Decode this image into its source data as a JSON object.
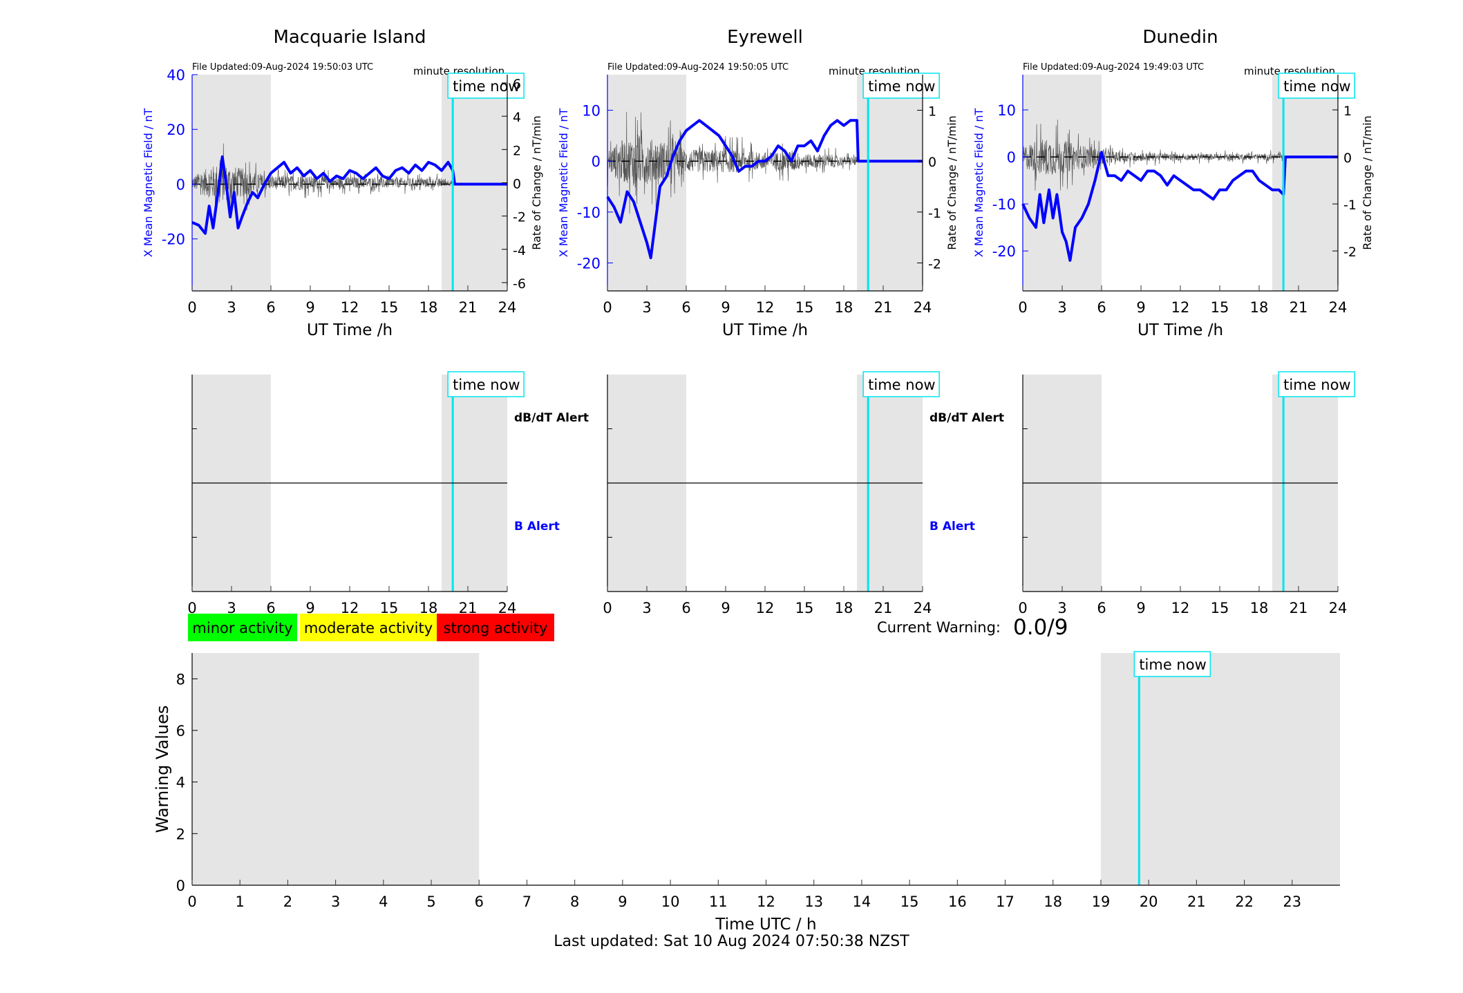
{
  "panel_headings": {
    "resolution_note": "minute resolution",
    "time_now_label": "time now",
    "x_axis_label": "UT Time /h",
    "left_axis_label": "X Mean Magnetic Field / nT",
    "right_axis_label": "Rate of Change / nT/min",
    "dbdt_alert_label": "dB/dT Alert",
    "b_alert_label": "B Alert"
  },
  "legend": {
    "minor": "minor activity",
    "moderate": "moderate activity",
    "strong": "strong activity"
  },
  "current_warning": {
    "label": "Current Warning:",
    "value": "0.0/9"
  },
  "footer": {
    "last_updated": "Last updated: Sat 10 Aug 2024 07:50:38 NZST"
  },
  "colors": {
    "field_line": "#0000ff",
    "rate_line": "#555555",
    "time_now": "#00e5ee",
    "night_shade": "#e5e5e5",
    "minor": "#00ff00",
    "moderate": "#ffff00",
    "strong": "#ff0000",
    "b_alert_text": "#0000ff"
  },
  "chart_data": [
    {
      "type": "line",
      "title": "Macquarie Island",
      "subtitle": "File Updated:09-Aug-2024 19:50:03 UTC",
      "xlabel": "UT Time /h",
      "ylabel": "X Mean Magnetic Field / nT",
      "ylabel_right": "Rate of Change / nT/min",
      "xlim": [
        0,
        24
      ],
      "ylim": [
        -39,
        40
      ],
      "ylim_right": [
        -6.5,
        6.5
      ],
      "xticks": [
        0,
        3,
        6,
        9,
        12,
        15,
        18,
        21,
        24
      ],
      "yticks": [
        -20,
        0,
        20,
        40
      ],
      "yticks_right": [
        -6,
        -4,
        -2,
        0,
        2,
        4,
        6
      ],
      "shaded_x": [
        [
          0,
          6
        ],
        [
          19,
          24
        ]
      ],
      "time_now": 19.85,
      "series": [
        {
          "name": "X Mean Magnetic Field",
          "axis": "left",
          "x": [
            0,
            0.5,
            1,
            1.3,
            1.6,
            2,
            2.3,
            2.6,
            2.9,
            3.2,
            3.5,
            3.8,
            4.2,
            4.6,
            5,
            5.5,
            6,
            6.5,
            7,
            7.5,
            8,
            8.5,
            9,
            9.5,
            10,
            10.5,
            11,
            11.5,
            12,
            12.5,
            13,
            13.5,
            14,
            14.5,
            15,
            15.5,
            16,
            16.5,
            17,
            17.5,
            18,
            18.5,
            19,
            19.5,
            19.85,
            20,
            24
          ],
          "y": [
            -14,
            -15,
            -18,
            -8,
            -16,
            -2,
            10,
            0,
            -12,
            -3,
            -16,
            -12,
            -7,
            -3,
            -5,
            0,
            4,
            6,
            8,
            4,
            6,
            3,
            5,
            2,
            4,
            1,
            3,
            2,
            5,
            4,
            2,
            4,
            6,
            3,
            2,
            5,
            6,
            4,
            7,
            5,
            8,
            7,
            5,
            8,
            5,
            0,
            0
          ]
        },
        {
          "name": "Rate of Change",
          "axis": "right",
          "noisy": true,
          "x": [
            0,
            1,
            2,
            3,
            4,
            5,
            6,
            7,
            8,
            9,
            10,
            11,
            12,
            13,
            14,
            15,
            16,
            17,
            18,
            19,
            19.85
          ],
          "y": [
            0,
            0,
            0,
            0,
            0,
            0,
            0,
            0,
            0,
            0,
            0,
            0,
            0,
            0,
            0,
            0,
            0,
            0,
            0,
            0,
            0
          ],
          "amplitude": [
            0.8,
            1.8,
            2.6,
            2.3,
            1.8,
            1.2,
            0.9,
            0.9,
            1.0,
            0.9,
            0.9,
            0.8,
            0.8,
            0.7,
            0.8,
            0.7,
            0.7,
            0.6,
            0.6,
            0.6,
            0.3
          ]
        }
      ]
    },
    {
      "type": "line",
      "title": "Eyrewell",
      "subtitle": "File Updated:09-Aug-2024 19:50:05 UTC",
      "xlabel": "UT Time /h",
      "ylabel": "X Mean Magnetic Field / nT",
      "ylabel_right": "Rate of Change / nT/min",
      "xlim": [
        0,
        24
      ],
      "ylim": [
        -25.5,
        17
      ],
      "ylim_right": [
        -2.55,
        1.7
      ],
      "xticks": [
        0,
        3,
        6,
        9,
        12,
        15,
        18,
        21,
        24
      ],
      "yticks": [
        -20,
        -10,
        0,
        10
      ],
      "yticks_right": [
        -2,
        -1,
        0,
        1
      ],
      "shaded_x": [
        [
          0,
          6
        ],
        [
          19,
          24
        ]
      ],
      "time_now": 19.85,
      "series": [
        {
          "name": "X Mean Magnetic Field",
          "axis": "left",
          "x": [
            0,
            0.5,
            1,
            1.5,
            2,
            2.5,
            3,
            3.3,
            3.6,
            4,
            4.5,
            5,
            5.5,
            6,
            6.5,
            7,
            7.5,
            8,
            8.5,
            9,
            9.5,
            10,
            10.5,
            11,
            11.5,
            12,
            12.5,
            13,
            13.5,
            14,
            14.5,
            15,
            15.5,
            16,
            16.5,
            17,
            17.5,
            18,
            18.5,
            19,
            19.1,
            19.85,
            24
          ],
          "y": [
            -7,
            -9,
            -12,
            -6,
            -8,
            -12,
            -16,
            -19,
            -13,
            -5,
            -3,
            1,
            4,
            6,
            7,
            8,
            7,
            6,
            5,
            3,
            1,
            -2,
            -1,
            -1,
            0,
            0,
            1,
            3,
            2,
            0,
            3,
            3,
            4,
            2,
            5,
            7,
            8,
            7,
            8,
            8,
            0,
            0,
            0
          ]
        },
        {
          "name": "Rate of Change",
          "axis": "right",
          "noisy": true,
          "x": [
            0,
            1,
            2,
            3,
            4,
            5,
            6,
            7,
            8,
            9,
            10,
            11,
            12,
            13,
            14,
            15,
            16,
            17,
            18,
            19
          ],
          "y": [
            0,
            0,
            0,
            0,
            0,
            0,
            0,
            0,
            0,
            0,
            0,
            0,
            0,
            0,
            0,
            0,
            0,
            0,
            0,
            0
          ],
          "amplitude": [
            0.5,
            0.9,
            1.1,
            1.0,
            0.9,
            0.8,
            0.5,
            0.5,
            0.5,
            0.5,
            0.5,
            0.4,
            0.4,
            0.4,
            0.5,
            0.3,
            0.3,
            0.3,
            0.2,
            0.2
          ]
        }
      ]
    },
    {
      "type": "line",
      "title": "Dunedin",
      "subtitle": "File Updated:09-Aug-2024 19:49:03 UTC",
      "xlabel": "UT Time /h",
      "ylabel": "X Mean Magnetic Field / nT",
      "ylabel_right": "Rate of Change / nT/min",
      "xlim": [
        0,
        24
      ],
      "ylim": [
        -28.5,
        17.5
      ],
      "ylim_right": [
        -2.85,
        1.75
      ],
      "xticks": [
        0,
        3,
        6,
        9,
        12,
        15,
        18,
        21,
        24
      ],
      "yticks": [
        -20,
        -10,
        0,
        10
      ],
      "yticks_right": [
        -2,
        -1,
        0,
        1
      ],
      "shaded_x": [
        [
          0,
          6
        ],
        [
          19,
          24
        ]
      ],
      "time_now": 19.85,
      "series": [
        {
          "name": "X Mean Magnetic Field",
          "axis": "left",
          "x": [
            0,
            0.5,
            1,
            1.3,
            1.6,
            2,
            2.3,
            2.6,
            3,
            3.3,
            3.6,
            4,
            4.5,
            5,
            5.5,
            6,
            6.5,
            7,
            7.5,
            8,
            8.5,
            9,
            9.5,
            10,
            10.5,
            11,
            11.5,
            12,
            12.5,
            13,
            13.5,
            14,
            14.5,
            15,
            15.5,
            16,
            16.5,
            17,
            17.5,
            18,
            18.5,
            19,
            19.5,
            19.85,
            20,
            24
          ],
          "y": [
            -10,
            -13,
            -15,
            -8,
            -14,
            -7,
            -13,
            -8,
            -16,
            -18,
            -22,
            -15,
            -13,
            -10,
            -5,
            1,
            -4,
            -4,
            -5,
            -3,
            -4,
            -5,
            -3,
            -3,
            -4,
            -6,
            -4,
            -5,
            -6,
            -7,
            -7,
            -8,
            -9,
            -7,
            -7,
            -5,
            -4,
            -3,
            -3,
            -5,
            -6,
            -7,
            -7,
            -8,
            0,
            0
          ]
        },
        {
          "name": "Rate of Change",
          "axis": "right",
          "noisy": true,
          "x": [
            0,
            1,
            2,
            3,
            4,
            5,
            6,
            7,
            8,
            9,
            10,
            11,
            12,
            13,
            14,
            15,
            16,
            17,
            18,
            19,
            19.85
          ],
          "y": [
            0,
            0,
            0,
            0,
            0,
            0,
            0,
            0,
            0,
            0,
            0,
            0,
            0,
            0,
            0,
            0,
            0,
            0,
            0,
            0,
            0
          ],
          "amplitude": [
            0.5,
            0.8,
            0.9,
            0.8,
            0.6,
            0.5,
            0.35,
            0.25,
            0.25,
            0.2,
            0.2,
            0.15,
            0.15,
            0.15,
            0.15,
            0.15,
            0.15,
            0.15,
            0.15,
            0.15,
            0.1
          ]
        }
      ]
    },
    {
      "type": "line",
      "title": "",
      "name": "alert-macquarie",
      "xlim": [
        0,
        24
      ],
      "ylim": [
        0,
        4
      ],
      "xticks": [
        0,
        3,
        6,
        9,
        12,
        15,
        18,
        21,
        24
      ],
      "shaded_x": [
        [
          0,
          6
        ],
        [
          19,
          24
        ]
      ],
      "time_now": 19.85,
      "divider_y": 2,
      "alerts": {
        "dbdt": [],
        "b": []
      }
    },
    {
      "type": "line",
      "title": "",
      "name": "alert-eyrewell",
      "xlim": [
        0,
        24
      ],
      "ylim": [
        0,
        4
      ],
      "xticks": [
        0,
        3,
        6,
        9,
        12,
        15,
        18,
        21,
        24
      ],
      "shaded_x": [
        [
          0,
          6
        ],
        [
          19,
          24
        ]
      ],
      "time_now": 19.85,
      "divider_y": 2,
      "alerts": {
        "dbdt": [],
        "b": []
      }
    },
    {
      "type": "line",
      "title": "",
      "name": "alert-dunedin",
      "xlim": [
        0,
        24
      ],
      "ylim": [
        0,
        4
      ],
      "xticks": [
        0,
        3,
        6,
        9,
        12,
        15,
        18,
        21,
        24
      ],
      "shaded_x": [
        [
          0,
          6
        ],
        [
          19,
          24
        ]
      ],
      "time_now": 19.85,
      "divider_y": 2,
      "alerts": {
        "dbdt": [],
        "b": []
      }
    },
    {
      "type": "bar",
      "title": "",
      "xlabel": "Time UTC / h",
      "ylabel": "Warning Values",
      "xlim": [
        0,
        24
      ],
      "ylim": [
        0,
        9
      ],
      "xticks": [
        0,
        1,
        2,
        3,
        4,
        5,
        6,
        7,
        8,
        9,
        10,
        11,
        12,
        13,
        14,
        15,
        16,
        17,
        18,
        19,
        20,
        21,
        22,
        23
      ],
      "yticks": [
        0,
        2,
        4,
        6,
        8
      ],
      "shaded_x": [
        [
          0,
          6
        ],
        [
          19,
          24
        ]
      ],
      "time_now": 19.8,
      "values": []
    }
  ]
}
